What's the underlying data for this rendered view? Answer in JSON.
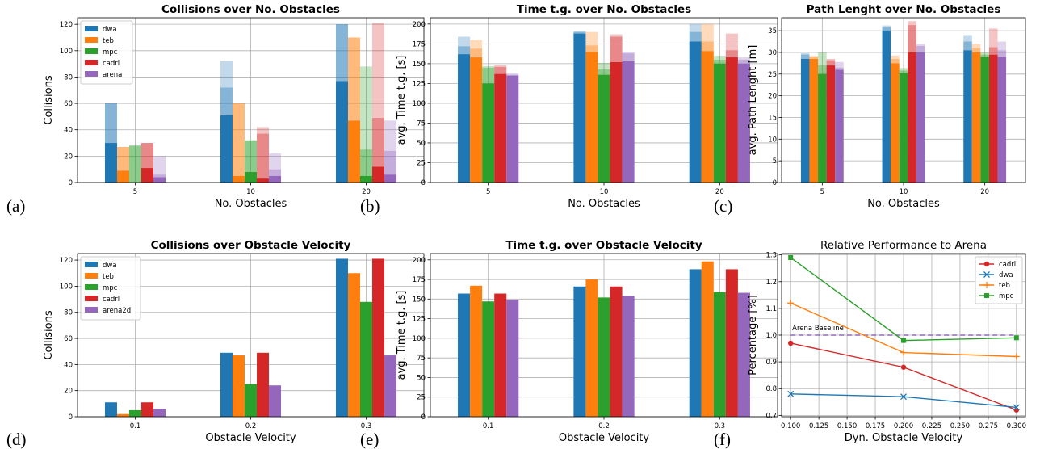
{
  "panels": [
    {
      "letter": "(a)",
      "chart_data": {
        "type": "bar",
        "stacked": true,
        "title": "Collisions over No. Obstacles",
        "title_bold": true,
        "xlabel": "No. Obstacles",
        "ylabel": "Collisions",
        "categories": [
          "5",
          "10",
          "20"
        ],
        "ylim": [
          0,
          125
        ],
        "yticks": [
          0,
          20,
          40,
          60,
          80,
          100,
          120
        ],
        "grid": true,
        "legend": "top-left",
        "series": [
          {
            "name": "dwa",
            "color": "#1f77b4",
            "levels": [
              [
                30,
                60,
                60
              ],
              [
                51,
                72,
                92
              ],
              [
                77,
                120,
                120
              ]
            ]
          },
          {
            "name": "teb",
            "color": "#ff7f0e",
            "levels": [
              [
                9,
                27,
                27
              ],
              [
                5,
                60,
                60
              ],
              [
                47,
                110,
                110
              ]
            ]
          },
          {
            "name": "mpc",
            "color": "#2ca02c",
            "levels": [
              [
                0,
                28,
                28
              ],
              [
                8,
                32,
                32
              ],
              [
                5,
                25,
                88
              ]
            ]
          },
          {
            "name": "cadrl",
            "color": "#d62728",
            "levels": [
              [
                11,
                30,
                30
              ],
              [
                3,
                37,
                42
              ],
              [
                12,
                49,
                121
              ]
            ]
          },
          {
            "name": "arena",
            "color": "#9467bd",
            "levels": [
              [
                4,
                6,
                20
              ],
              [
                5,
                10,
                22
              ],
              [
                6,
                24,
                47
              ]
            ]
          }
        ]
      }
    },
    {
      "letter": "(b)",
      "chart_data": {
        "type": "bar",
        "stacked": true,
        "title": "Time t.g. over No. Obstacles",
        "title_bold": true,
        "xlabel": "No. Obstacles",
        "ylabel": "avg. Time t.g. [s]",
        "categories": [
          "5",
          "10",
          "20"
        ],
        "ylim": [
          0,
          208
        ],
        "yticks": [
          0,
          25,
          50,
          75,
          100,
          125,
          150,
          175,
          200
        ],
        "grid": true,
        "legend": "none",
        "series": [
          {
            "name": "dwa",
            "color": "#1f77b4",
            "levels": [
              [
                162,
                172,
                184
              ],
              [
                188,
                190,
                191
              ],
              [
                178,
                190,
                200
              ]
            ]
          },
          {
            "name": "teb",
            "color": "#ff7f0e",
            "levels": [
              [
                158,
                169,
                180
              ],
              [
                165,
                173,
                190
              ],
              [
                166,
                178,
                200
              ]
            ]
          },
          {
            "name": "mpc",
            "color": "#2ca02c",
            "levels": [
              [
                125,
                145,
                147
              ],
              [
                136,
                143,
                151
              ],
              [
                150,
                155,
                160
              ]
            ]
          },
          {
            "name": "cadrl",
            "color": "#d62728",
            "levels": [
              [
                137,
                146,
                148
              ],
              [
                152,
                184,
                187
              ],
              [
                158,
                167,
                188
              ]
            ]
          },
          {
            "name": "arena",
            "color": "#9467bd",
            "levels": [
              [
                135,
                136,
                138
              ],
              [
                153,
                163,
                165
              ],
              [
                150,
                155,
                158
              ]
            ]
          }
        ]
      }
    },
    {
      "letter": "(c)",
      "chart_data": {
        "type": "bar",
        "stacked": true,
        "title": "Path Lenght over No. Obstacles",
        "title_bold": true,
        "xlabel": "No. Obstacles",
        "ylabel": "avg. Path Lenght [m]",
        "categories": [
          "5",
          "10",
          "20"
        ],
        "ylim": [
          0,
          38
        ],
        "yticks": [
          0,
          5,
          10,
          15,
          20,
          25,
          30,
          35
        ],
        "grid": true,
        "legend": "none",
        "series": [
          {
            "name": "dwa",
            "color": "#1f77b4",
            "levels": [
              [
                28.5,
                29.5,
                29.8
              ],
              [
                35,
                35.8,
                36.2
              ],
              [
                30.5,
                32.5,
                34
              ]
            ]
          },
          {
            "name": "teb",
            "color": "#ff7f0e",
            "levels": [
              [
                28.5,
                29,
                29.2
              ],
              [
                27.5,
                28.5,
                29.3
              ],
              [
                30,
                31,
                32
              ]
            ]
          },
          {
            "name": "mpc",
            "color": "#2ca02c",
            "levels": [
              [
                25,
                27,
                30
              ],
              [
                25.2,
                25.8,
                26.4
              ],
              [
                29,
                29.5,
                30
              ]
            ]
          },
          {
            "name": "cadrl",
            "color": "#d62728",
            "levels": [
              [
                27,
                28.2,
                28.5
              ],
              [
                30,
                36.3,
                37.2
              ],
              [
                29.5,
                31.2,
                35.5
              ]
            ]
          },
          {
            "name": "arena",
            "color": "#9467bd",
            "levels": [
              [
                26,
                26.5,
                27.8
              ],
              [
                30,
                31.5,
                32
              ],
              [
                29,
                30.5,
                32.5
              ]
            ]
          }
        ]
      }
    },
    {
      "letter": "(d)",
      "chart_data": {
        "type": "bar",
        "stacked": false,
        "title": "Collisions over Obstacle Velocity",
        "title_bold": true,
        "xlabel": "Obstacle Velocity",
        "ylabel": "Collisions",
        "categories": [
          "0.1",
          "0.2",
          "0.3"
        ],
        "ylim": [
          0,
          125
        ],
        "yticks": [
          0,
          20,
          40,
          60,
          80,
          100,
          120
        ],
        "grid": true,
        "legend": "top-left",
        "series": [
          {
            "name": "dwa",
            "color": "#1f77b4",
            "values": [
              11,
              49,
              121
            ]
          },
          {
            "name": "teb",
            "color": "#ff7f0e",
            "values": [
              2,
              47,
              110
            ]
          },
          {
            "name": "mpc",
            "color": "#2ca02c",
            "values": [
              5,
              25,
              88
            ]
          },
          {
            "name": "cadrl",
            "color": "#d62728",
            "values": [
              11,
              49,
              121
            ]
          },
          {
            "name": "arena2d",
            "color": "#9467bd",
            "values": [
              6,
              24,
              47
            ]
          }
        ]
      }
    },
    {
      "letter": "(e)",
      "chart_data": {
        "type": "bar",
        "stacked": false,
        "title": "Time t.g. over Obstacle Velocity",
        "title_bold": true,
        "xlabel": "Obstacle Velocity",
        "ylabel": "avg. Time t.g. [s]",
        "categories": [
          "0.1",
          "0.2",
          "0.3"
        ],
        "ylim": [
          0,
          208
        ],
        "yticks": [
          0,
          25,
          50,
          75,
          100,
          125,
          150,
          175,
          200
        ],
        "grid": true,
        "legend": "none",
        "series": [
          {
            "name": "dwa",
            "color": "#1f77b4",
            "values": [
              157,
              166,
              188
            ]
          },
          {
            "name": "teb",
            "color": "#ff7f0e",
            "values": [
              167,
              175,
              198
            ]
          },
          {
            "name": "mpc",
            "color": "#2ca02c",
            "values": [
              147,
              152,
              159
            ]
          },
          {
            "name": "cadrl",
            "color": "#d62728",
            "values": [
              157,
              166,
              188
            ]
          },
          {
            "name": "arena",
            "color": "#9467bd",
            "values": [
              149,
              154,
              158
            ]
          }
        ]
      }
    },
    {
      "letter": "(f)",
      "chart_data": {
        "type": "line",
        "title": "Relative Performance to Arena",
        "title_bold": false,
        "xlabel": "Dyn. Obstacle Velocity",
        "ylabel": "Percentage [%]",
        "x": [
          0.1,
          0.2,
          0.3
        ],
        "xlim": [
          0.092,
          0.308
        ],
        "ylim": [
          0.695,
          1.305
        ],
        "xticks": [
          "0.100",
          "0.125",
          "0.150",
          "0.175",
          "0.200",
          "0.225",
          "0.250",
          "0.275",
          "0.300"
        ],
        "yticks": [
          "0.7",
          "0.8",
          "0.9",
          "1.0",
          "1.1",
          "1.2",
          "1.3"
        ],
        "grid": true,
        "legend": "top-right",
        "baseline": {
          "label": "Arena Baseline",
          "value": 1.0,
          "color": "#9467bd"
        },
        "series": [
          {
            "name": "cadrl",
            "color": "#d62728",
            "marker": "circle",
            "values": [
              0.97,
              0.88,
              0.72
            ]
          },
          {
            "name": "dwa",
            "color": "#1f77b4",
            "marker": "x",
            "values": [
              0.78,
              0.77,
              0.73
            ]
          },
          {
            "name": "teb",
            "color": "#ff7f0e",
            "marker": "plus",
            "values": [
              1.12,
              0.935,
              0.92
            ]
          },
          {
            "name": "mpc",
            "color": "#2ca02c",
            "marker": "square",
            "values": [
              1.29,
              0.98,
              0.99
            ]
          }
        ]
      }
    }
  ]
}
